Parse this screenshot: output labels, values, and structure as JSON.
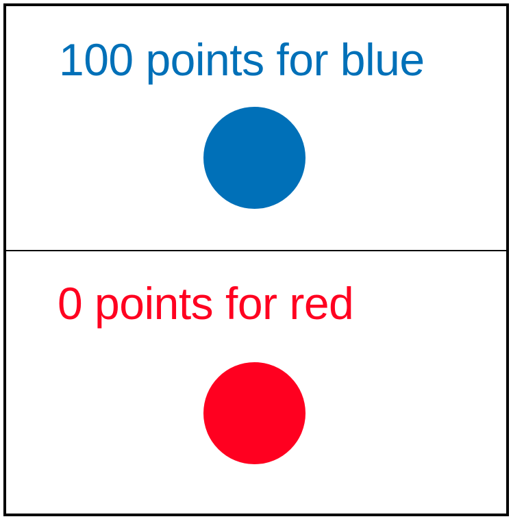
{
  "panels": {
    "blue": {
      "label": "100 points for blue",
      "color": "#0070b8"
    },
    "red": {
      "label": "0 points for red",
      "color": "#ff0020"
    }
  },
  "colors": {
    "border": "#000000",
    "background": "#ffffff"
  }
}
